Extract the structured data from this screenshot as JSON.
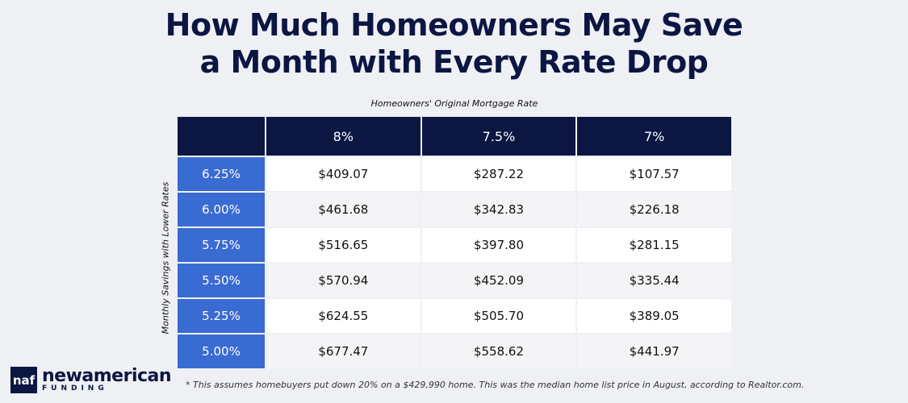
{
  "title": {
    "line1": "How Much Homeowners May Save",
    "line2": "a Month with Every Rate Drop"
  },
  "column_title": "Homeowners' Original Mortgage Rate",
  "row_title": "Monthly Savings with Lower Rates",
  "columns": [
    "8%",
    "7.5%",
    "7%"
  ],
  "rows": [
    {
      "label": "6.25%",
      "values": [
        "$409.07",
        "$287.22",
        "$107.57"
      ]
    },
    {
      "label": "6.00%",
      "values": [
        "$461.68",
        "$342.83",
        "$226.18"
      ]
    },
    {
      "label": "5.75%",
      "values": [
        "$516.65",
        "$397.80",
        "$281.15"
      ]
    },
    {
      "label": "5.50%",
      "values": [
        "$570.94",
        "$452.09",
        "$335.44"
      ]
    },
    {
      "label": "5.25%",
      "values": [
        "$624.55",
        "$505.70",
        "$389.05"
      ]
    },
    {
      "label": "5.00%",
      "values": [
        "$677.47",
        "$558.62",
        "$441.97"
      ]
    }
  ],
  "footnote": "* This assumes homebuyers put down 20% on a $429,990 home. This was the median home list price in August, according to Realtor.com.",
  "logo": {
    "mark": "naf",
    "name": "newamerican",
    "sub": "FUNDING"
  },
  "colors": {
    "navy": "#0b1642",
    "blue": "#3a6bd2",
    "background": "#eef0f4"
  }
}
